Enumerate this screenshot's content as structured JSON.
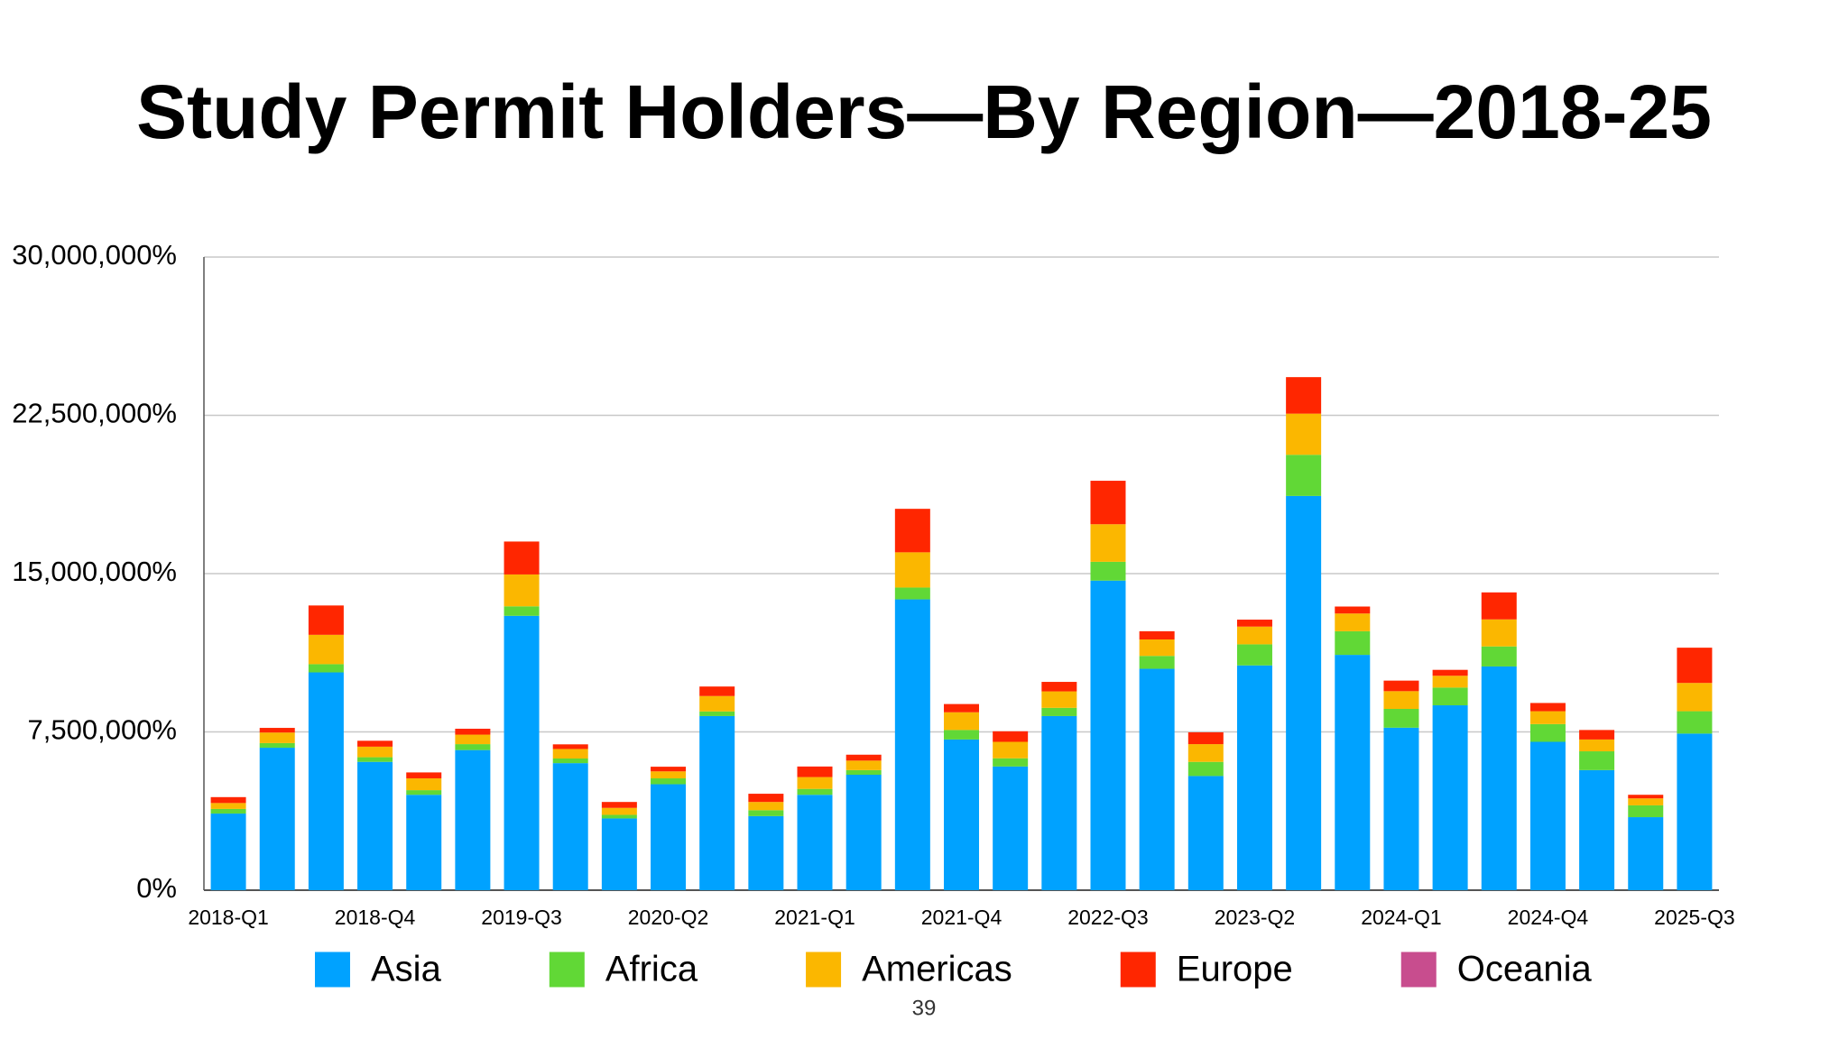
{
  "chart_data": {
    "type": "bar",
    "stacked": true,
    "title": "Study Permit Holders—By Region—2018-25",
    "page_number": "39",
    "categories": [
      "2018-Q1",
      null,
      null,
      "2018-Q4",
      null,
      null,
      "2019-Q3",
      null,
      null,
      "2020-Q2",
      null,
      null,
      "2021-Q1",
      null,
      null,
      "2021-Q4",
      null,
      null,
      "2022-Q3",
      null,
      null,
      "2023-Q2",
      null,
      null,
      "2024-Q1",
      null,
      null,
      "2024-Q4",
      null,
      null,
      "2025-Q3"
    ],
    "series": [
      {
        "name": "Asia",
        "color": "#00a2ff",
        "values": [
          3630000,
          6750000,
          10320000,
          6080000,
          4520000,
          6640000,
          13000000,
          6020000,
          3400000,
          5020000,
          8250000,
          3510000,
          4520000,
          5470000,
          13780000,
          7140000,
          5860000,
          8250000,
          14670000,
          10490000,
          5410000,
          10650000,
          18680000,
          11150000,
          7700000,
          8760000,
          10600000,
          7030000,
          5690000,
          3460000,
          7420000
        ]
      },
      {
        "name": "Africa",
        "color": "#61d836",
        "values": [
          220000,
          220000,
          390000,
          220000,
          220000,
          280000,
          450000,
          220000,
          170000,
          280000,
          220000,
          280000,
          280000,
          220000,
          560000,
          450000,
          390000,
          390000,
          890000,
          610000,
          670000,
          1000000,
          1950000,
          1120000,
          890000,
          840000,
          950000,
          840000,
          890000,
          560000,
          1060000
        ]
      },
      {
        "name": "Americas",
        "color": "#fbb700",
        "values": [
          280000,
          500000,
          1390000,
          500000,
          560000,
          450000,
          1510000,
          450000,
          330000,
          330000,
          730000,
          390000,
          560000,
          450000,
          1670000,
          840000,
          780000,
          780000,
          1780000,
          780000,
          840000,
          840000,
          1950000,
          840000,
          840000,
          560000,
          1280000,
          610000,
          560000,
          330000,
          1340000
        ]
      },
      {
        "name": "Europe",
        "color": "#ff2600",
        "values": [
          280000,
          220000,
          1390000,
          280000,
          280000,
          280000,
          1560000,
          220000,
          280000,
          220000,
          450000,
          390000,
          500000,
          280000,
          2060000,
          390000,
          500000,
          450000,
          2060000,
          390000,
          560000,
          330000,
          1730000,
          330000,
          500000,
          280000,
          1280000,
          390000,
          450000,
          170000,
          1670000
        ]
      },
      {
        "name": "Oceania",
        "color": "#c84d8e",
        "values": [
          0,
          0,
          0,
          0,
          0,
          0,
          0,
          0,
          0,
          0,
          0,
          0,
          0,
          0,
          0,
          0,
          0,
          0,
          0,
          0,
          0,
          0,
          0,
          0,
          0,
          0,
          0,
          0,
          0,
          0,
          0
        ]
      }
    ],
    "ylim": [
      0,
      30000000
    ],
    "yticks": [
      {
        "value": 0,
        "label": "0%"
      },
      {
        "value": 7500000,
        "label": "7,500,000%"
      },
      {
        "value": 15000000,
        "label": "15,000,000%"
      },
      {
        "value": 22500000,
        "label": "22,500,000%"
      },
      {
        "value": 30000000,
        "label": "30,000,000%"
      }
    ],
    "grid": true
  }
}
